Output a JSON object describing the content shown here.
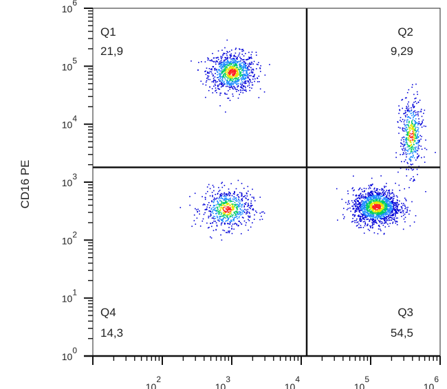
{
  "chart_data": {
    "type": "scatter",
    "subtype": "flow-cytometry-density-dot-plot",
    "title": "",
    "ylabel": "CD16 PE",
    "xlabel": "",
    "xscale": "log",
    "yscale": "log",
    "xlim": [
      10,
      1000000
    ],
    "ylim": [
      1,
      1000000
    ],
    "x_tick_labels": [
      {
        "base": "10",
        "exp": "2",
        "value": 100
      },
      {
        "base": "10",
        "exp": "3",
        "value": 1000
      },
      {
        "base": "10",
        "exp": "4",
        "value": 10000
      },
      {
        "base": "10",
        "exp": "5",
        "value": 100000
      },
      {
        "base": "10",
        "exp": "6",
        "value": 1000000
      }
    ],
    "y_tick_labels": [
      {
        "base": "10",
        "exp": "0",
        "value": 1
      },
      {
        "base": "10",
        "exp": "1",
        "value": 10
      },
      {
        "base": "10",
        "exp": "2",
        "value": 100
      },
      {
        "base": "10",
        "exp": "3",
        "value": 1000
      },
      {
        "base": "10",
        "exp": "4",
        "value": 10000
      },
      {
        "base": "10",
        "exp": "5",
        "value": 100000
      },
      {
        "base": "10",
        "exp": "6",
        "value": 1000000
      }
    ],
    "quadrant_gate": {
      "x": 12000,
      "y": 1800
    },
    "quadrants": [
      {
        "name": "Q1",
        "value": "21,9",
        "position": "top-left"
      },
      {
        "name": "Q2",
        "value": "9,29",
        "position": "top-right"
      },
      {
        "name": "Q3",
        "value": "54,5",
        "position": "bottom-right"
      },
      {
        "name": "Q4",
        "value": "14,3",
        "position": "bottom-left"
      }
    ],
    "populations": [
      {
        "center_x": 1000,
        "center_y": 80000,
        "spread_x": 0.17,
        "spread_y": 0.17,
        "points": 950
      },
      {
        "center_x": 850,
        "center_y": 350,
        "spread_x": 0.18,
        "spread_y": 0.17,
        "points": 650
      },
      {
        "center_x": 120000,
        "center_y": 380,
        "spread_x": 0.17,
        "spread_y": 0.15,
        "points": 1500
      },
      {
        "center_x": 380000,
        "center_y": 6500,
        "spread_x": 0.08,
        "spread_y": 0.32,
        "points": 480
      }
    ],
    "density_colors": [
      "#0000d8",
      "#1e8cff",
      "#00cc66",
      "#e6e600",
      "#ff2020"
    ],
    "gate_color": "#111111"
  }
}
